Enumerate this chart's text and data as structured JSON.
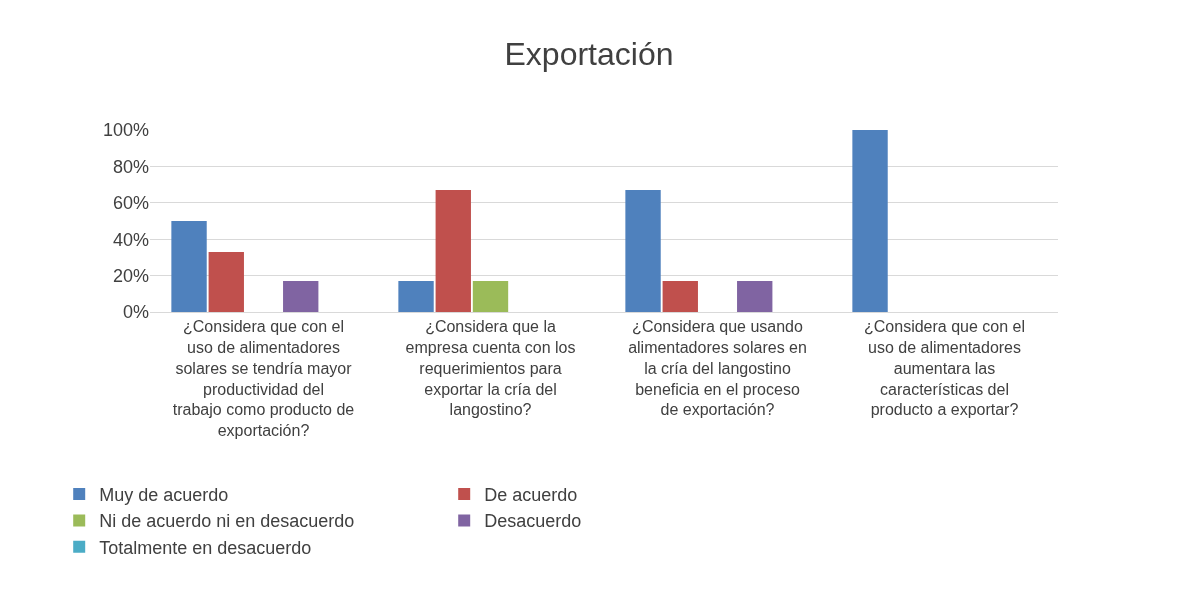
{
  "chart_data": {
    "type": "bar",
    "title": "Exportación",
    "categories": [
      "¿Considera que con el uso de alimentadores solares se tendría mayor productividad del trabajo como producto de exportación?",
      "¿Considera que la empresa cuenta con los requerimientos para exportar la cría del langostino?",
      "¿Considera que usando alimentadores solares en la cría del langostino beneficia en el proceso de exportación?",
      "¿Considera que con el uso de alimentadores aumentara las características del producto a exportar?"
    ],
    "series": [
      {
        "name": "Muy de acuerdo",
        "color": "#4f81bd",
        "values": [
          50,
          17,
          67,
          100
        ]
      },
      {
        "name": "De acuerdo",
        "color": "#c0504d",
        "values": [
          33,
          67,
          17,
          0
        ]
      },
      {
        "name": "Ni de acuerdo ni en desacuerdo",
        "color": "#9bbb59",
        "values": [
          0,
          17,
          0,
          0
        ]
      },
      {
        "name": "Desacuerdo",
        "color": "#8064a2",
        "values": [
          17,
          0,
          17,
          0
        ]
      },
      {
        "name": "Totalmente en desacuerdo",
        "color": "#4bacc6",
        "values": [
          0,
          0,
          0,
          0
        ]
      }
    ],
    "ylim": [
      0,
      100
    ],
    "yticks": [
      {
        "value": 0,
        "label": "0%"
      },
      {
        "value": 20,
        "label": "20%"
      },
      {
        "value": 40,
        "label": "40%"
      },
      {
        "value": 60,
        "label": "60%"
      },
      {
        "value": 80,
        "label": "80%"
      },
      {
        "value": 100,
        "label": "100%"
      }
    ],
    "grid": "y",
    "legend": "bottom"
  }
}
